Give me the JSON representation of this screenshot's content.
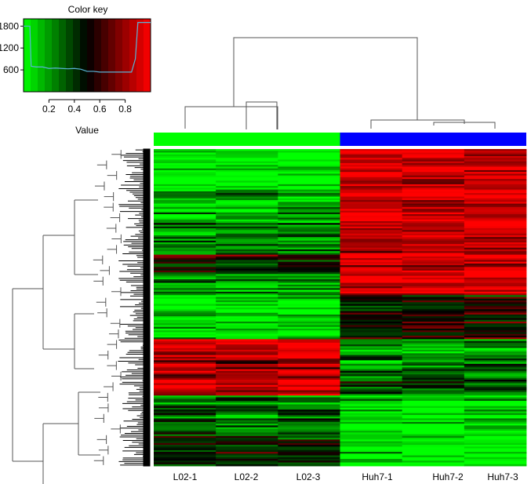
{
  "chart_data": {
    "type": "heatmap",
    "title": "",
    "columns": [
      "L02-1",
      "L02-2",
      "L02-3",
      "Huh7-1",
      "Huh7-2",
      "Huh7-3"
    ],
    "column_groups": [
      {
        "name": "L02",
        "color": "#00ff00",
        "columns": [
          "L02-1",
          "L02-2",
          "L02-3"
        ]
      },
      {
        "name": "Huh7",
        "color": "#0000ff",
        "columns": [
          "Huh7-1",
          "Huh7-2",
          "Huh7-3"
        ]
      }
    ],
    "row_blocks": [
      {
        "rows": 22,
        "L02": 0.05,
        "Huh7": 0.95
      },
      {
        "rows": 20,
        "L02": 0.15,
        "Huh7": 0.93
      },
      {
        "rows": 18,
        "L02": 0.3,
        "Huh7": 0.9
      },
      {
        "rows": 10,
        "L02": 0.55,
        "Huh7": 0.95
      },
      {
        "rows": 12,
        "L02": 0.2,
        "Huh7": 0.96
      },
      {
        "rows": 26,
        "L02": 0.06,
        "Huh7": 0.55
      },
      {
        "rows": 10,
        "L02": 0.9,
        "Huh7": 0.18
      },
      {
        "rows": 14,
        "L02": 0.8,
        "Huh7": 0.28
      },
      {
        "rows": 8,
        "L02": 0.92,
        "Huh7": 0.35
      },
      {
        "rows": 22,
        "L02": 0.3,
        "Huh7": 0.05
      },
      {
        "rows": 18,
        "L02": 0.45,
        "Huh7": 0.04
      }
    ],
    "color_scale": {
      "low": "#00ff00",
      "mid": "#000000",
      "high": "#ff0000",
      "range": [
        0,
        1
      ]
    },
    "color_key": {
      "title": "Color key",
      "xlabel": "Value",
      "x_ticks": [
        0.2,
        0.4,
        0.6,
        0.8
      ],
      "y_ticks": [
        600,
        1200,
        1800
      ],
      "xlim": [
        0,
        1
      ],
      "ylim": [
        0,
        2000
      ],
      "histogram_x": [
        0.0,
        0.05,
        0.06,
        0.1,
        0.15,
        0.2,
        0.25,
        0.3,
        0.35,
        0.4,
        0.45,
        0.5,
        0.55,
        0.6,
        0.65,
        0.7,
        0.75,
        0.8,
        0.85,
        0.88,
        0.9,
        0.95,
        1.0
      ],
      "histogram_y": [
        1800,
        1800,
        700,
        680,
        680,
        640,
        650,
        640,
        630,
        640,
        620,
        560,
        560,
        540,
        540,
        540,
        540,
        540,
        540,
        900,
        1900,
        1900,
        1900
      ],
      "histogram_color": "#5ab4d6"
    }
  }
}
